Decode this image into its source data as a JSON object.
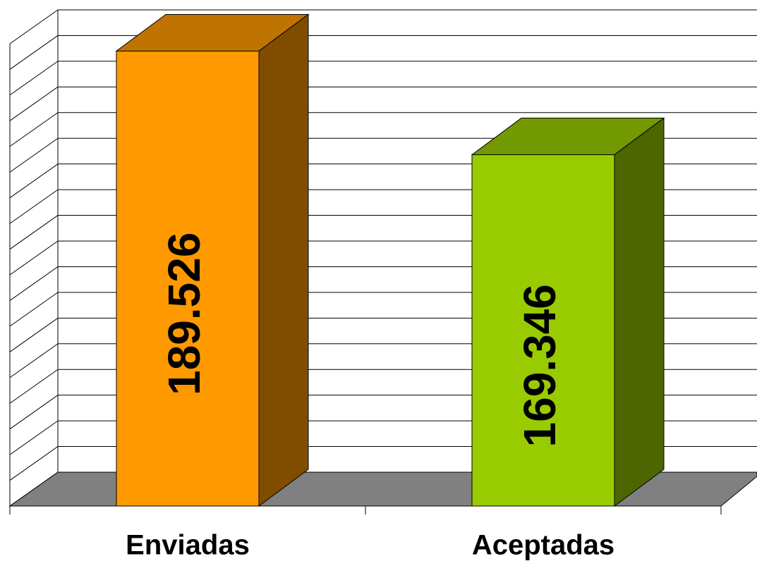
{
  "chart_data": {
    "type": "bar3d",
    "categories": [
      "Enviadas",
      "Aceptadas"
    ],
    "values": [
      189526,
      169346
    ],
    "value_labels": [
      "189.526",
      "169.346"
    ],
    "colors": [
      "#FF9900",
      "#99CC00"
    ],
    "ylim": [
      100000,
      190000
    ],
    "yticks": [
      100000,
      105000,
      110000,
      115000,
      120000,
      125000,
      130000,
      135000,
      140000,
      145000,
      150000,
      155000,
      160000,
      165000,
      170000,
      175000,
      180000,
      185000,
      190000
    ],
    "grid": true
  }
}
